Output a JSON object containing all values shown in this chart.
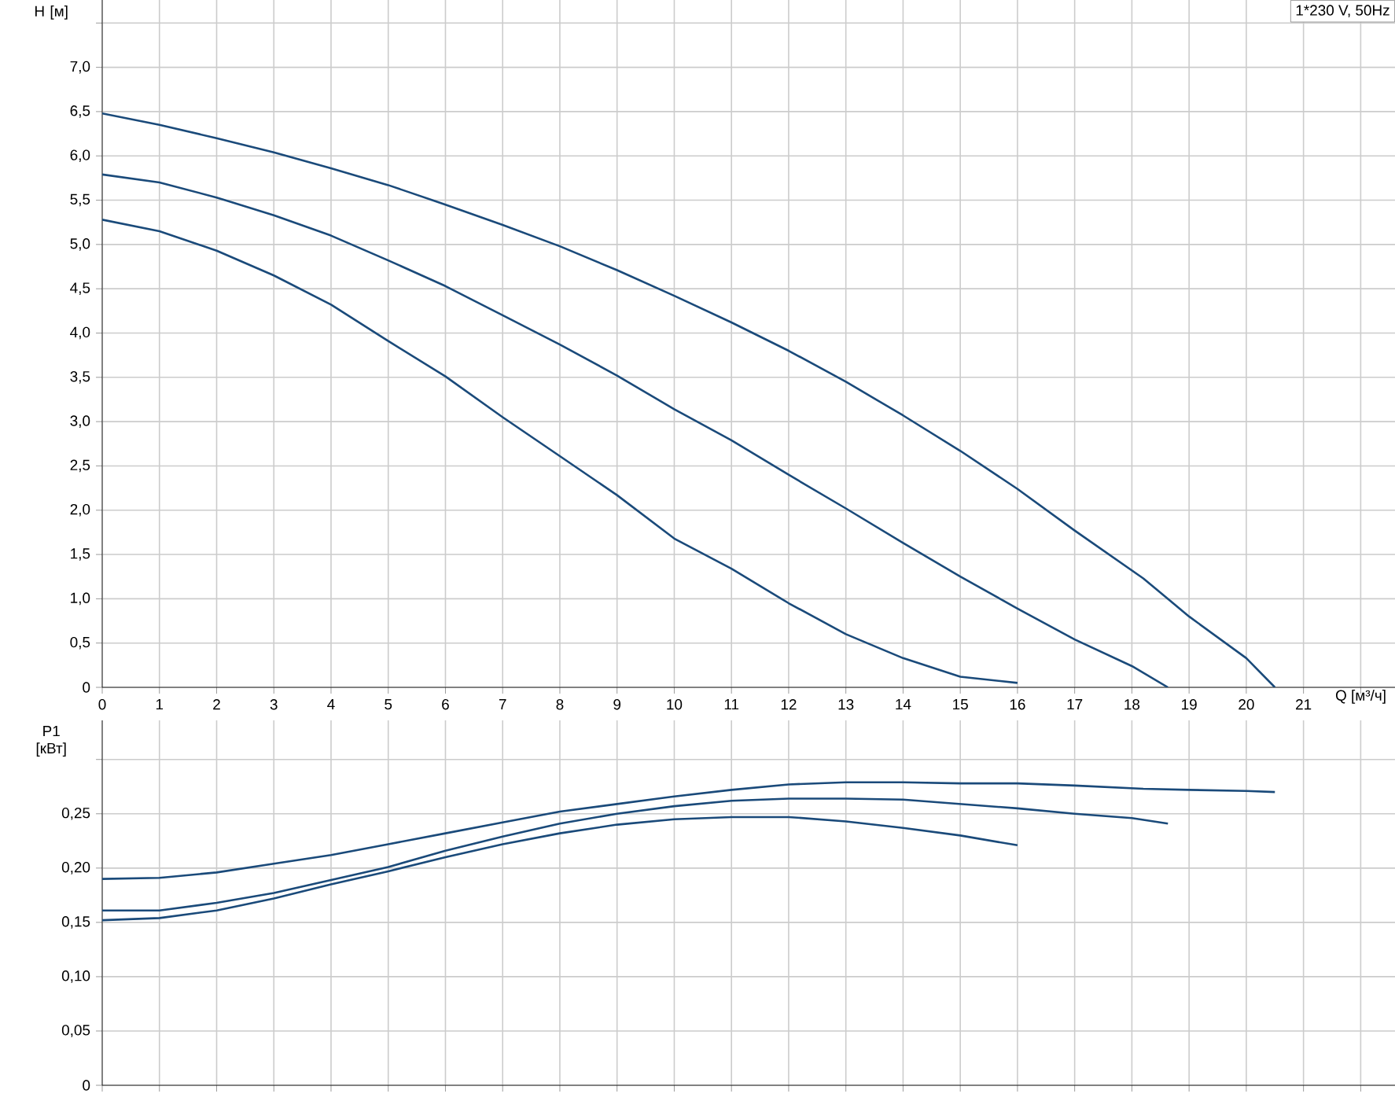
{
  "chart_data": [
    {
      "type": "line",
      "title": "1*230 V, 50Hz",
      "xlabel": "Q [м³/ч]",
      "ylabel": "H [м]",
      "grid": true,
      "xlim": [
        0,
        22.6
      ],
      "ylim": [
        0,
        7.76
      ],
      "xticks": [
        0,
        1,
        2,
        3,
        4,
        5,
        6,
        7,
        8,
        9,
        10,
        11,
        12,
        13,
        14,
        15,
        16,
        17,
        18,
        19,
        20,
        21,
        {
          "value": 22,
          "label": null
        }
      ],
      "yticks": [
        0,
        {
          "value": 0.5,
          "label": "0,5"
        },
        {
          "value": 1,
          "label": "1,0"
        },
        {
          "value": 1.5,
          "label": "1,5"
        },
        {
          "value": 2,
          "label": "2,0"
        },
        {
          "value": 2.5,
          "label": "2,5"
        },
        {
          "value": 3,
          "label": "3,0"
        },
        {
          "value": 3.5,
          "label": "3,5"
        },
        {
          "value": 4,
          "label": "4,0"
        },
        {
          "value": 4.5,
          "label": "4,5"
        },
        {
          "value": 5,
          "label": "5,0"
        },
        {
          "value": 5.5,
          "label": "5,5"
        },
        {
          "value": 6,
          "label": "6,0"
        },
        {
          "value": 6.5,
          "label": "6,5"
        },
        {
          "value": 7,
          "label": "7,0"
        },
        {
          "value": 7.5,
          "label": null
        }
      ],
      "series": [
        {
          "color": "#1a4a7a",
          "x": [
            0,
            1,
            2,
            3,
            4,
            5,
            6,
            7,
            8,
            9,
            10,
            11,
            12,
            13,
            14,
            15,
            16,
            17,
            18.2,
            19,
            20,
            20.5
          ],
          "values": [
            6.48,
            6.35,
            6.2,
            6.04,
            5.86,
            5.67,
            5.45,
            5.22,
            4.98,
            4.71,
            4.42,
            4.12,
            3.8,
            3.45,
            3.07,
            2.67,
            2.24,
            1.77,
            1.23,
            0.8,
            0.33,
            0
          ]
        },
        {
          "color": "#1a4a7a",
          "x": [
            0,
            1,
            2,
            3,
            4,
            5,
            6,
            7,
            8,
            9,
            10,
            11,
            12,
            13,
            14,
            15,
            16,
            17,
            18,
            18.63
          ],
          "values": [
            5.79,
            5.7,
            5.53,
            5.33,
            5.1,
            4.82,
            4.53,
            4.2,
            3.87,
            3.52,
            3.14,
            2.79,
            2.4,
            2.02,
            1.63,
            1.25,
            0.89,
            0.54,
            0.24,
            0
          ]
        },
        {
          "color": "#1a4a7a",
          "x": [
            0,
            1,
            2,
            3,
            4,
            5,
            6,
            7,
            8,
            9,
            10,
            11,
            12,
            13,
            14,
            15,
            16
          ],
          "values": [
            5.28,
            5.15,
            4.93,
            4.65,
            4.32,
            3.91,
            3.51,
            3.05,
            2.61,
            2.17,
            1.68,
            1.34,
            0.95,
            0.6,
            0.33,
            0.12,
            0.05
          ]
        }
      ]
    },
    {
      "type": "line",
      "ylabel": "P1 [кВт]",
      "grid": true,
      "tick_labels": "y",
      "xlim": [
        0,
        22.6
      ],
      "ylim": [
        0,
        0.336
      ],
      "xticks": [
        0,
        1,
        2,
        3,
        4,
        5,
        6,
        7,
        8,
        9,
        10,
        11,
        12,
        13,
        14,
        15,
        16,
        17,
        18,
        19,
        20,
        21,
        22
      ],
      "yticks": [
        0,
        {
          "value": 0.05,
          "label": "0,05"
        },
        {
          "value": 0.1,
          "label": "0,10"
        },
        {
          "value": 0.15,
          "label": "0,15"
        },
        {
          "value": 0.2,
          "label": "0,20"
        },
        {
          "value": 0.25,
          "label": "0,25"
        },
        {
          "value": 0.3,
          "label": null
        }
      ],
      "series": [
        {
          "color": "#1a4a7a",
          "x": [
            0,
            1,
            2,
            3,
            4,
            5,
            6,
            7,
            8,
            9,
            10,
            11,
            12,
            13,
            14,
            15,
            16,
            17,
            18.2,
            19,
            20,
            20.5
          ],
          "values": [
            0.19,
            0.191,
            0.196,
            0.204,
            0.212,
            0.222,
            0.232,
            0.242,
            0.252,
            0.259,
            0.266,
            0.272,
            0.277,
            0.279,
            0.279,
            0.278,
            0.278,
            0.276,
            0.273,
            0.272,
            0.271,
            0.27
          ]
        },
        {
          "color": "#1a4a7a",
          "x": [
            0,
            1,
            2,
            3,
            4,
            5,
            6,
            7,
            8,
            9,
            10,
            11,
            12,
            13,
            14,
            15,
            16,
            17,
            18,
            18.63
          ],
          "values": [
            0.161,
            0.161,
            0.168,
            0.177,
            0.189,
            0.201,
            0.216,
            0.229,
            0.241,
            0.25,
            0.257,
            0.262,
            0.264,
            0.264,
            0.263,
            0.259,
            0.255,
            0.25,
            0.246,
            0.241
          ]
        },
        {
          "color": "#1a4a7a",
          "x": [
            0,
            1,
            2,
            3,
            4,
            5,
            6,
            7,
            8,
            9,
            10,
            11,
            12,
            13,
            14,
            15,
            16
          ],
          "values": [
            0.152,
            0.154,
            0.161,
            0.172,
            0.185,
            0.197,
            0.21,
            0.222,
            0.232,
            0.24,
            0.245,
            0.247,
            0.247,
            0.243,
            0.237,
            0.23,
            0.221
          ]
        }
      ]
    }
  ]
}
